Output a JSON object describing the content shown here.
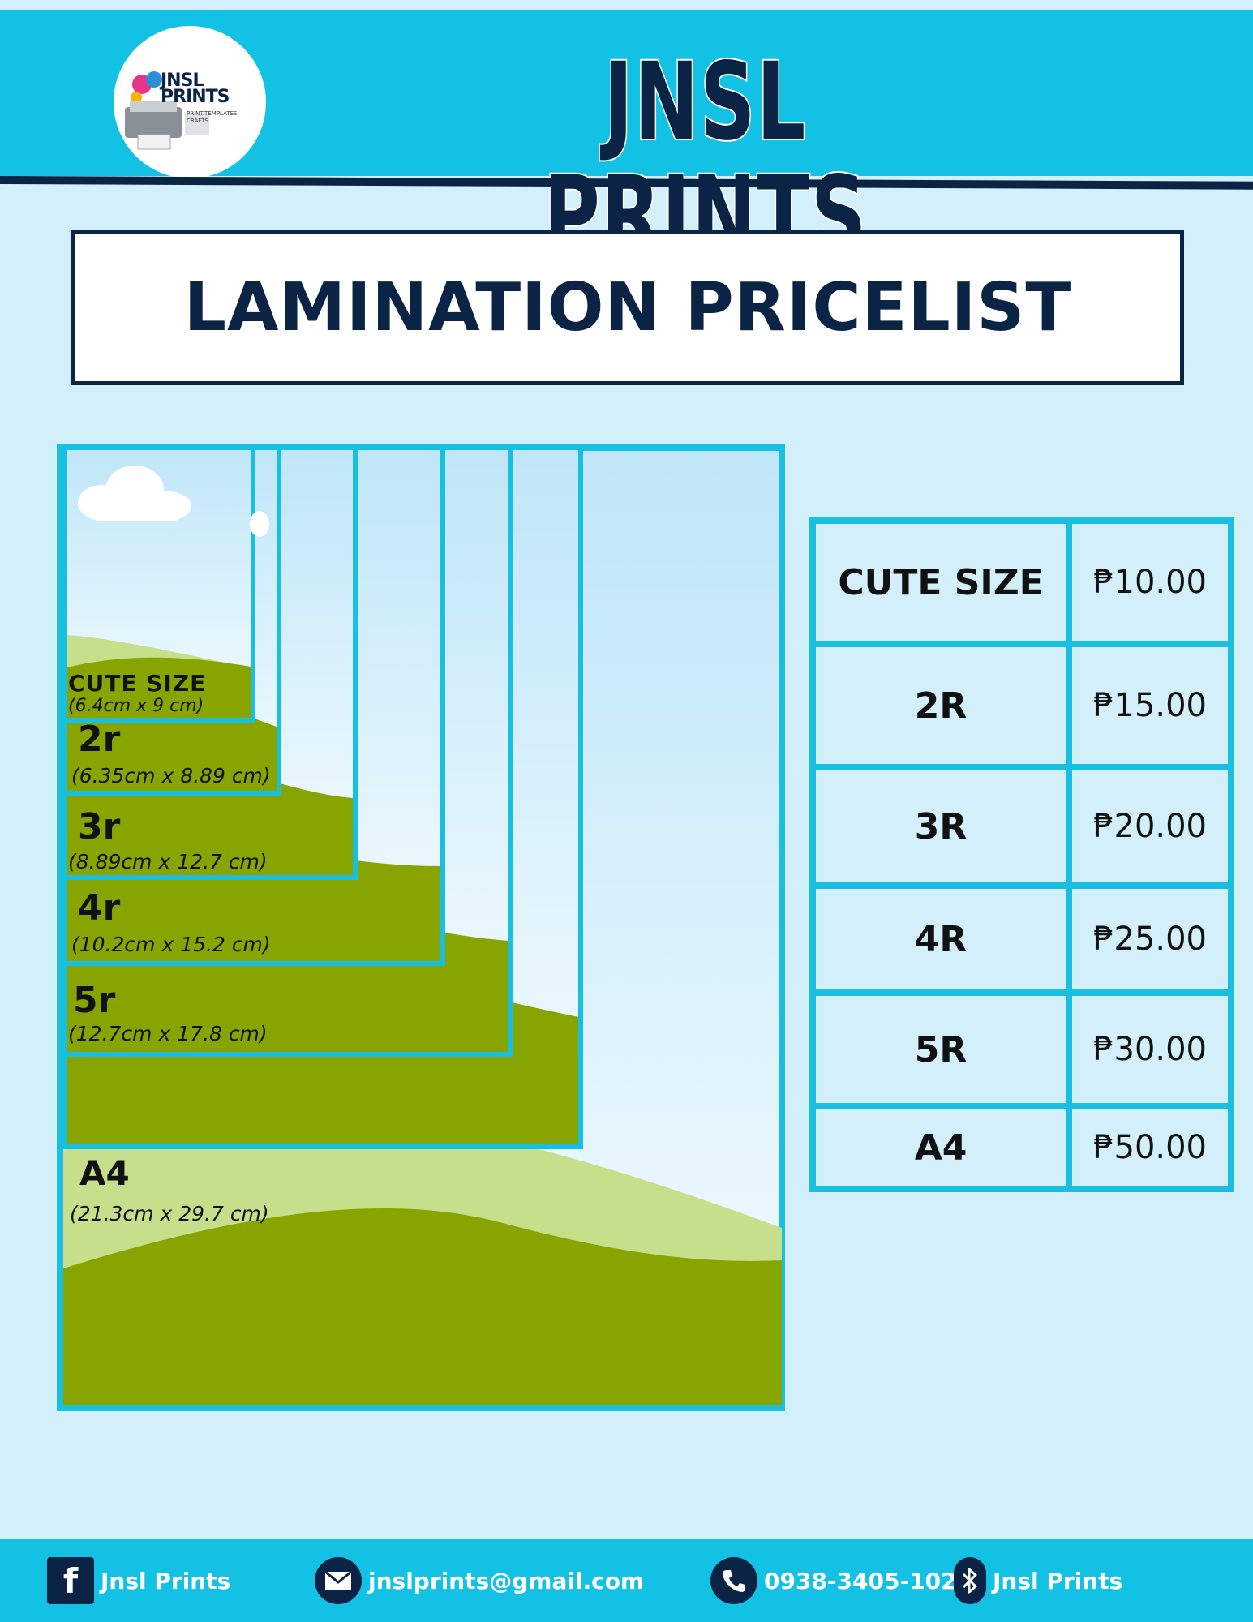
{
  "header": {
    "brand_title": "JNSL PRINTS",
    "logo": {
      "name_text": "JNSL PRINTS",
      "tagline": "PRINT.TEMPLATES. CRAFTS"
    }
  },
  "title": "LAMINATION PRICELIST",
  "diagram": {
    "sizes": [
      {
        "label": "CUTE SIZE",
        "dims": "(6.4cm  x 9 cm)"
      },
      {
        "label": "2r",
        "dims": "(6.35cm  x 8.89 cm)"
      },
      {
        "label": "3r",
        "dims": "(8.89cm  x 12.7 cm)"
      },
      {
        "label": "4r",
        "dims": "(10.2cm  x 15.2 cm)"
      },
      {
        "label": "5r",
        "dims": "(12.7cm  x 17.8 cm)"
      },
      {
        "label": "A4",
        "dims": "(21.3cm  x 29.7 cm)"
      }
    ]
  },
  "price_table": {
    "rows": [
      {
        "size": "CUTE SIZE",
        "price": "₱10.00"
      },
      {
        "size": "2R",
        "price": "₱15.00"
      },
      {
        "size": "3R",
        "price": "₱20.00"
      },
      {
        "size": "4R",
        "price": "₱25.00"
      },
      {
        "size": "5R",
        "price": "₱30.00"
      },
      {
        "size": "A4",
        "price": "₱50.00"
      }
    ]
  },
  "footer": {
    "facebook": "Jnsl Prints",
    "email": "jnslprints@gmail.com",
    "phone": "0938-3405-102",
    "bluetooth": "Jnsl Prints"
  },
  "colors": {
    "cyan": "#12c1e3",
    "navy": "#0b2445",
    "grass": "#87a400",
    "light_grass": "#c6df8a",
    "sky": "#d2effa"
  }
}
